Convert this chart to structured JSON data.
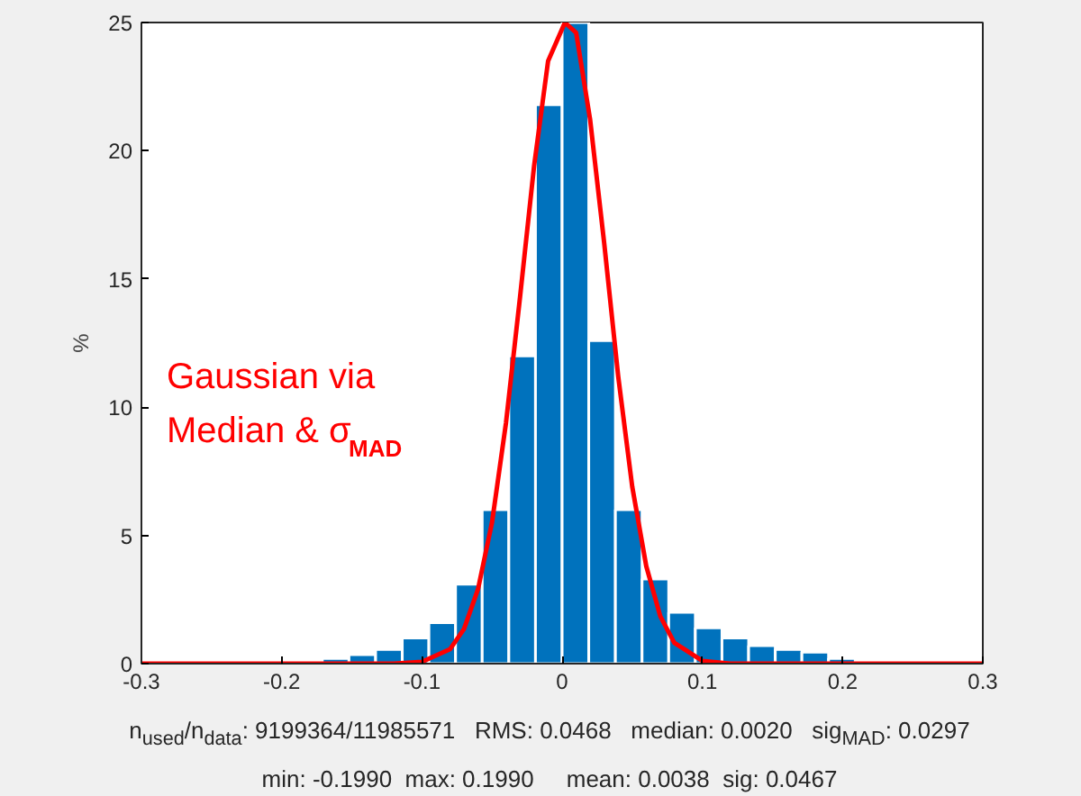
{
  "chart_data": {
    "type": "histogram",
    "ylabel": "%",
    "bins": [
      -0.19,
      -0.171,
      -0.152,
      -0.133,
      -0.114,
      -0.095,
      -0.076,
      -0.057,
      -0.038,
      -0.019,
      0,
      0.019,
      0.038,
      0.057,
      0.076,
      0.095,
      0.114,
      0.133,
      0.152,
      0.171,
      0.19,
      0.209
    ],
    "values": [
      0.1,
      0.2,
      0.35,
      0.55,
      1.0,
      1.6,
      3.1,
      6.0,
      12.0,
      21.8,
      25,
      12.6,
      6.0,
      3.3,
      2.0,
      1.4,
      1.0,
      0.7,
      0.55,
      0.45,
      0.2
    ],
    "color": "#0072bd",
    "series": [
      {
        "type": "line",
        "color": "#ff0000",
        "x": [
          -0.3,
          -0.12,
          -0.1,
          -0.08,
          -0.07,
          -0.06,
          -0.05,
          -0.04,
          -0.03,
          -0.02,
          -0.01,
          0.002,
          0.01,
          0.02,
          0.03,
          0.04,
          0.05,
          0.06,
          0.07,
          0.08,
          0.1,
          0.12,
          0.3
        ],
        "values": [
          0,
          0,
          0.07,
          0.56,
          1.35,
          2.9,
          5.5,
          9.4,
          14.3,
          19.4,
          23.5,
          25,
          24.6,
          21.2,
          16.4,
          11.2,
          6.9,
          3.8,
          1.85,
          0.81,
          0.11,
          0,
          0
        ]
      }
    ],
    "xlim": [
      -0.3,
      0.3
    ],
    "xticks": [
      -0.3,
      -0.2,
      -0.1,
      0,
      0.1,
      0.2,
      0.3
    ],
    "ylim": [
      0,
      25
    ],
    "yticks": [
      0,
      5,
      10,
      15,
      20,
      25
    ],
    "grid": false,
    "annotations": [
      "Gaussian via\nMedian & σ$_{MAD}$",
      "n$_{used}$/n$_{data}$: 9199364/11985571   RMS: 0.0468   median: 0.0020   sig$_{MAD}$: 0.0297",
      "min: -0.1990  max: 0.1990     mean: 0.0038  sig: 0.0467"
    ]
  }
}
